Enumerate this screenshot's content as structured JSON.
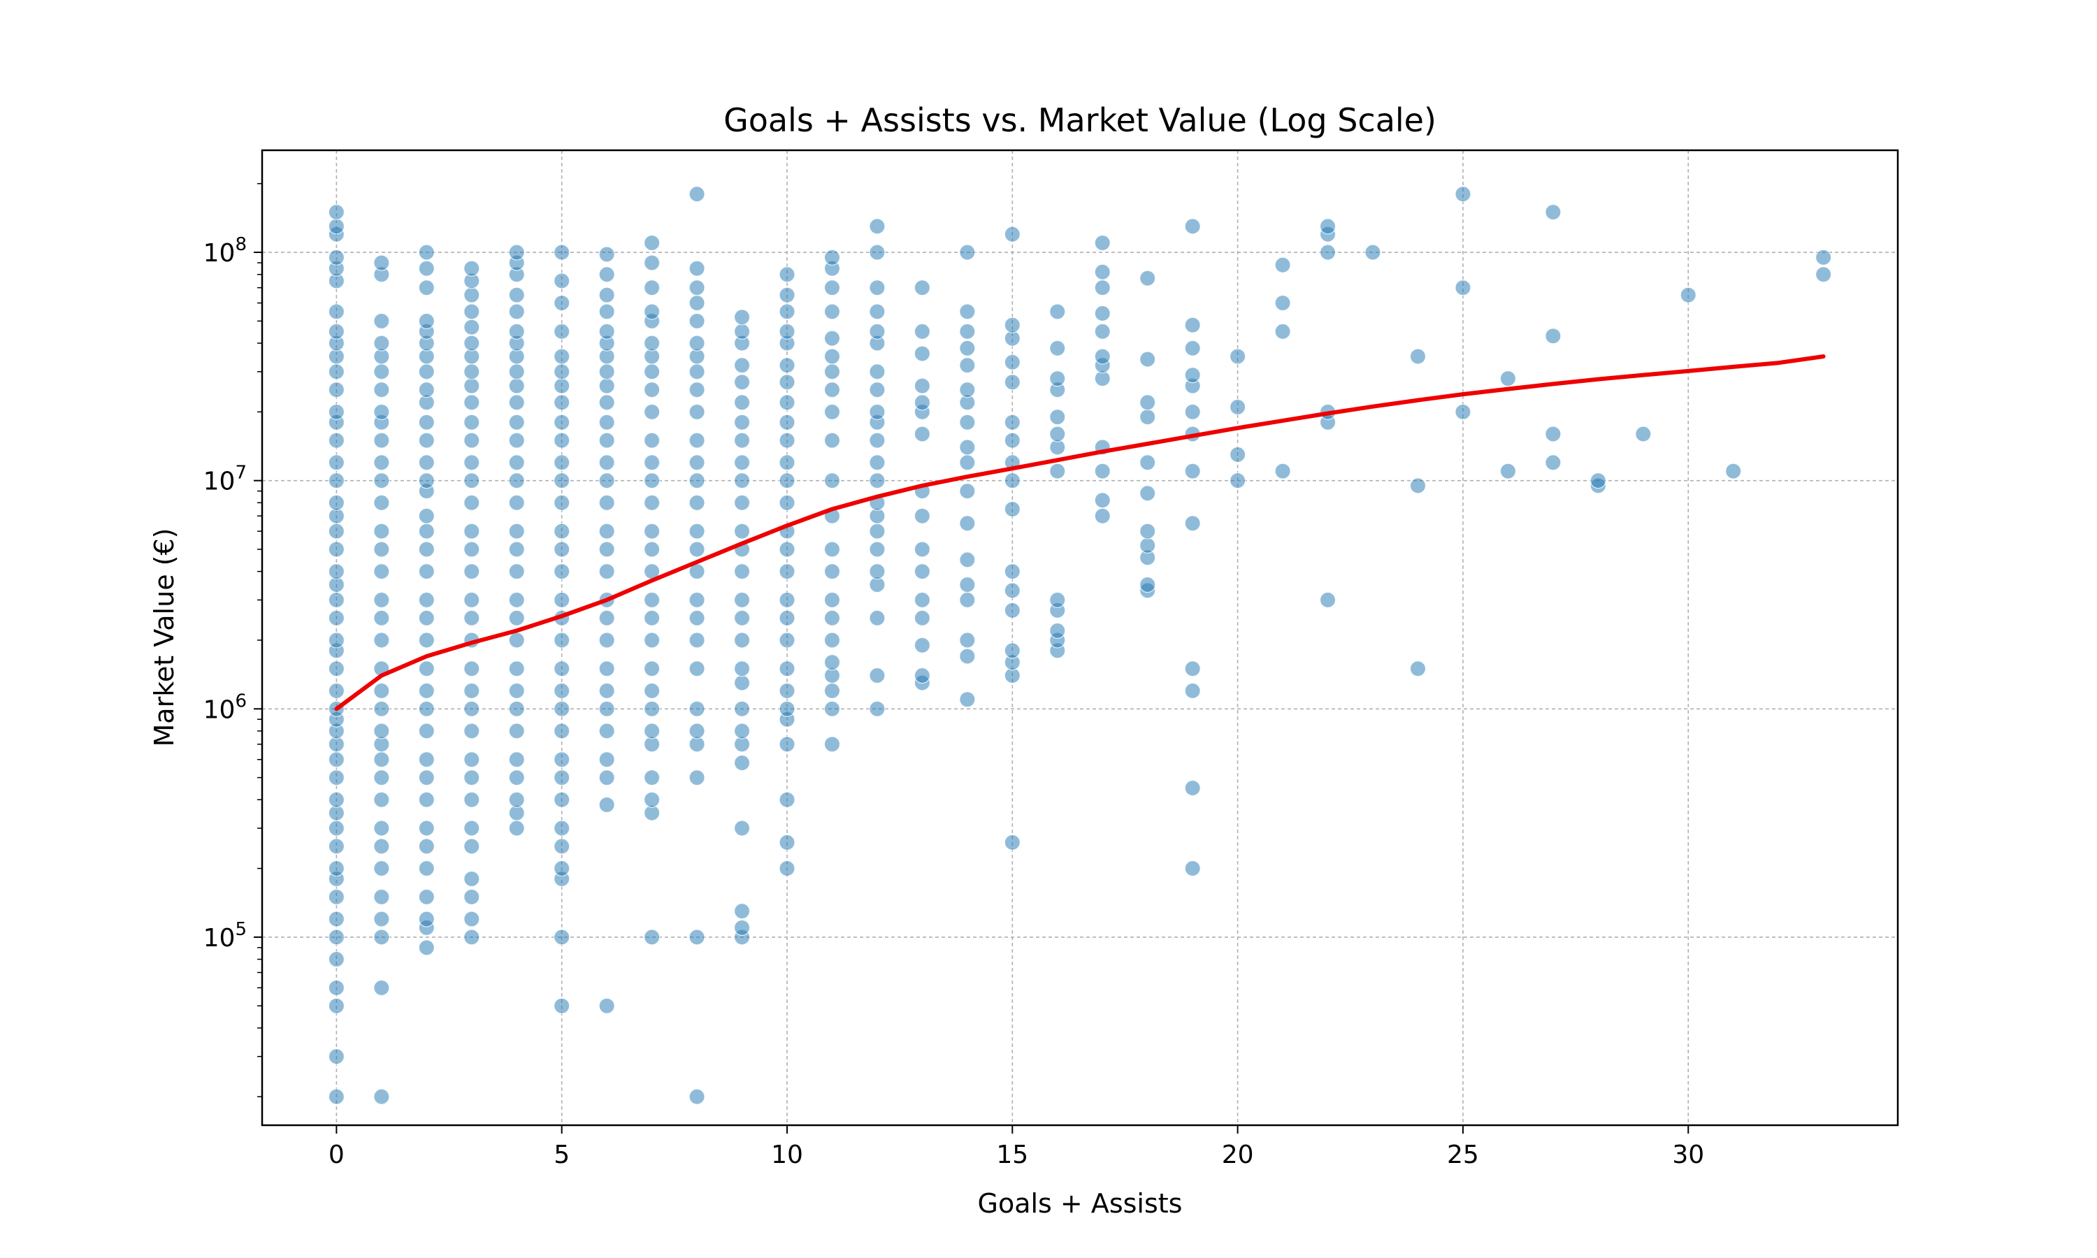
{
  "chart_data": {
    "type": "scatter",
    "title": "Goals + Assists vs. Market Value (Log Scale)",
    "xlabel": "Goals + Assists",
    "ylabel": "Market Value (€)",
    "x_ticks": [
      0,
      5,
      10,
      15,
      20,
      25,
      30
    ],
    "y_ticks": [
      {
        "value": 100000,
        "base": "10",
        "exponent": "5"
      },
      {
        "value": 1000000,
        "base": "10",
        "exponent": "6"
      },
      {
        "value": 10000000,
        "base": "10",
        "exponent": "7"
      },
      {
        "value": 100000000,
        "base": "10",
        "exponent": "8"
      }
    ],
    "xlim": [
      -1.65,
      34.65
    ],
    "ylim": [
      15000,
      280000000
    ],
    "y_scale": "log",
    "grid": true,
    "colors": {
      "points": "#1f77b4",
      "trend": "#ee0000"
    },
    "points_by_x": [
      [
        0,
        [
          20000,
          30000,
          50000,
          60000,
          80000,
          100000,
          120000,
          150000,
          180000,
          200000,
          250000,
          300000,
          350000,
          400000,
          500000,
          600000,
          700000,
          800000,
          900000,
          1000000,
          1200000,
          1500000,
          1800000,
          2000000,
          2500000,
          3000000,
          3500000,
          4000000,
          5000000,
          6000000,
          7000000,
          8000000,
          10000000,
          12000000,
          15000000,
          18000000,
          20000000,
          25000000,
          30000000,
          35000000,
          40000000,
          45000000,
          55000000,
          75000000,
          85000000,
          95000000,
          120000000,
          130000000,
          150000000
        ]
      ],
      [
        1,
        [
          20000,
          60000,
          100000,
          120000,
          150000,
          200000,
          250000,
          300000,
          400000,
          500000,
          600000,
          700000,
          800000,
          1000000,
          1200000,
          1500000,
          2000000,
          2500000,
          3000000,
          4000000,
          5000000,
          6000000,
          8000000,
          10000000,
          12000000,
          15000000,
          18000000,
          20000000,
          25000000,
          30000000,
          35000000,
          40000000,
          50000000,
          80000000,
          90000000
        ]
      ],
      [
        2,
        [
          90000,
          110000,
          120000,
          150000,
          200000,
          250000,
          300000,
          400000,
          500000,
          600000,
          800000,
          1000000,
          1200000,
          1500000,
          2000000,
          2500000,
          3000000,
          4000000,
          5000000,
          6000000,
          7000000,
          9000000,
          10000000,
          12000000,
          15000000,
          18000000,
          22000000,
          25000000,
          30000000,
          35000000,
          40000000,
          45000000,
          50000000,
          70000000,
          85000000,
          100000000
        ]
      ],
      [
        3,
        [
          100000,
          120000,
          150000,
          180000,
          250000,
          300000,
          400000,
          500000,
          600000,
          800000,
          1000000,
          1200000,
          1500000,
          2000000,
          2500000,
          3000000,
          4000000,
          5000000,
          6000000,
          8000000,
          10000000,
          12000000,
          15000000,
          18000000,
          22000000,
          26000000,
          30000000,
          35000000,
          40000000,
          47000000,
          55000000,
          65000000,
          75000000,
          85000000
        ]
      ],
      [
        4,
        [
          300000,
          350000,
          400000,
          500000,
          600000,
          800000,
          1000000,
          1200000,
          1500000,
          2000000,
          2500000,
          3000000,
          4000000,
          5000000,
          6000000,
          8000000,
          10000000,
          12000000,
          15000000,
          18000000,
          22000000,
          26000000,
          30000000,
          35000000,
          40000000,
          45000000,
          55000000,
          65000000,
          80000000,
          90000000,
          100000000
        ]
      ],
      [
        5,
        [
          50000,
          100000,
          180000,
          200000,
          250000,
          300000,
          400000,
          500000,
          600000,
          800000,
          1000000,
          1200000,
          1500000,
          2000000,
          2500000,
          3000000,
          4000000,
          5000000,
          6000000,
          8000000,
          10000000,
          12000000,
          15000000,
          18000000,
          22000000,
          26000000,
          30000000,
          35000000,
          45000000,
          60000000,
          75000000,
          100000000
        ]
      ],
      [
        6,
        [
          50000,
          380000,
          500000,
          600000,
          800000,
          1000000,
          1200000,
          1500000,
          2000000,
          2500000,
          3000000,
          4000000,
          5000000,
          6000000,
          8000000,
          10000000,
          12000000,
          15000000,
          18000000,
          22000000,
          26000000,
          30000000,
          35000000,
          40000000,
          45000000,
          55000000,
          65000000,
          80000000,
          98000000
        ]
      ],
      [
        7,
        [
          100000,
          350000,
          400000,
          500000,
          700000,
          800000,
          1000000,
          1200000,
          1500000,
          2000000,
          2500000,
          3000000,
          4000000,
          5000000,
          6000000,
          8000000,
          10000000,
          12000000,
          15000000,
          20000000,
          25000000,
          30000000,
          35000000,
          40000000,
          50000000,
          55000000,
          70000000,
          90000000,
          110000000
        ]
      ],
      [
        8,
        [
          20000,
          100000,
          500000,
          700000,
          800000,
          1000000,
          1500000,
          2000000,
          2500000,
          3000000,
          4000000,
          5000000,
          6000000,
          8000000,
          10000000,
          12000000,
          15000000,
          20000000,
          25000000,
          30000000,
          35000000,
          40000000,
          50000000,
          60000000,
          70000000,
          85000000,
          180000000
        ]
      ],
      [
        9,
        [
          100000,
          110000,
          130000,
          300000,
          580000,
          700000,
          800000,
          1000000,
          1300000,
          1500000,
          2000000,
          2500000,
          3000000,
          4000000,
          5000000,
          6000000,
          8000000,
          10000000,
          12000000,
          15000000,
          18000000,
          22000000,
          27000000,
          32000000,
          40000000,
          45000000,
          52000000
        ]
      ],
      [
        10,
        [
          200000,
          260000,
          400000,
          700000,
          900000,
          1000000,
          1200000,
          1500000,
          2000000,
          2500000,
          3000000,
          4000000,
          5000000,
          6000000,
          8000000,
          10000000,
          12000000,
          15000000,
          18000000,
          22000000,
          27000000,
          32000000,
          40000000,
          45000000,
          55000000,
          65000000,
          80000000
        ]
      ],
      [
        11,
        [
          700000,
          1000000,
          1200000,
          1400000,
          1600000,
          2000000,
          2500000,
          3000000,
          4000000,
          5000000,
          7000000,
          10000000,
          15000000,
          20000000,
          25000000,
          30000000,
          35000000,
          42000000,
          55000000,
          70000000,
          85000000,
          95000000
        ]
      ],
      [
        12,
        [
          1000000,
          1400000,
          2500000,
          3500000,
          4000000,
          5000000,
          6000000,
          7000000,
          8000000,
          10000000,
          12000000,
          15000000,
          18000000,
          20000000,
          25000000,
          30000000,
          40000000,
          45000000,
          55000000,
          70000000,
          100000000,
          130000000
        ]
      ],
      [
        13,
        [
          1300000,
          1400000,
          1900000,
          2500000,
          3000000,
          4000000,
          5000000,
          7000000,
          9000000,
          16000000,
          20000000,
          22000000,
          26000000,
          36000000,
          45000000,
          70000000
        ]
      ],
      [
        14,
        [
          1100000,
          1700000,
          2000000,
          3000000,
          3500000,
          4500000,
          6500000,
          9000000,
          12000000,
          14000000,
          18000000,
          22000000,
          25000000,
          32000000,
          38000000,
          45000000,
          55000000,
          100000000
        ]
      ],
      [
        15,
        [
          260000,
          1400000,
          1600000,
          1800000,
          2700000,
          3300000,
          4000000,
          7500000,
          10000000,
          12000000,
          15000000,
          18000000,
          27000000,
          33000000,
          42000000,
          48000000,
          120000000
        ]
      ],
      [
        16,
        [
          1800000,
          2000000,
          2200000,
          2700000,
          3000000,
          11000000,
          14000000,
          16000000,
          19000000,
          25000000,
          28000000,
          38000000,
          55000000
        ]
      ],
      [
        17,
        [
          7000000,
          8200000,
          11000000,
          14000000,
          28000000,
          32000000,
          35000000,
          45000000,
          54000000,
          70000000,
          82000000,
          110000000
        ]
      ],
      [
        18,
        [
          3300000,
          3500000,
          4600000,
          5200000,
          6000000,
          8800000,
          12000000,
          19000000,
          22000000,
          34000000,
          77000000
        ]
      ],
      [
        19,
        [
          200000,
          450000,
          1200000,
          1500000,
          6500000,
          11000000,
          16000000,
          20000000,
          26000000,
          29000000,
          38000000,
          48000000,
          130000000
        ]
      ],
      [
        20,
        [
          10000000,
          13000000,
          21000000,
          35000000
        ]
      ],
      [
        21,
        [
          11000000,
          45000000,
          60000000,
          88000000
        ]
      ],
      [
        22,
        [
          3000000,
          18000000,
          20000000,
          100000000,
          120000000,
          130000000
        ]
      ],
      [
        23,
        [
          100000000
        ]
      ],
      [
        24,
        [
          1500000,
          9500000,
          35000000
        ]
      ],
      [
        25,
        [
          20000000,
          70000000,
          180000000
        ]
      ],
      [
        26,
        [
          11000000,
          28000000
        ]
      ],
      [
        27,
        [
          12000000,
          16000000,
          43000000,
          150000000
        ]
      ],
      [
        28,
        [
          9500000,
          10000000
        ]
      ],
      [
        29,
        [
          16000000
        ]
      ],
      [
        30,
        [
          65000000
        ]
      ],
      [
        31,
        [
          11000000
        ]
      ],
      [
        33,
        [
          80000000,
          95000000
        ]
      ]
    ],
    "trend_line": {
      "x": [
        0,
        1,
        2,
        3,
        4,
        5,
        6,
        7,
        8,
        9,
        10,
        11,
        12,
        13,
        14,
        15,
        16,
        17,
        18,
        19,
        20,
        21,
        22,
        23,
        24,
        25,
        26,
        27,
        28,
        29,
        30,
        31,
        32,
        33
      ],
      "y": [
        1000000,
        1400000,
        1700000,
        1950000,
        2200000,
        2550000,
        3000000,
        3650000,
        4400000,
        5300000,
        6350000,
        7500000,
        8500000,
        9500000,
        10400000,
        11300000,
        12300000,
        13400000,
        14500000,
        15700000,
        17000000,
        18300000,
        19700000,
        21100000,
        22500000,
        23900000,
        25200000,
        26500000,
        27800000,
        29000000,
        30200000,
        31500000,
        32800000,
        35000000
      ]
    }
  }
}
